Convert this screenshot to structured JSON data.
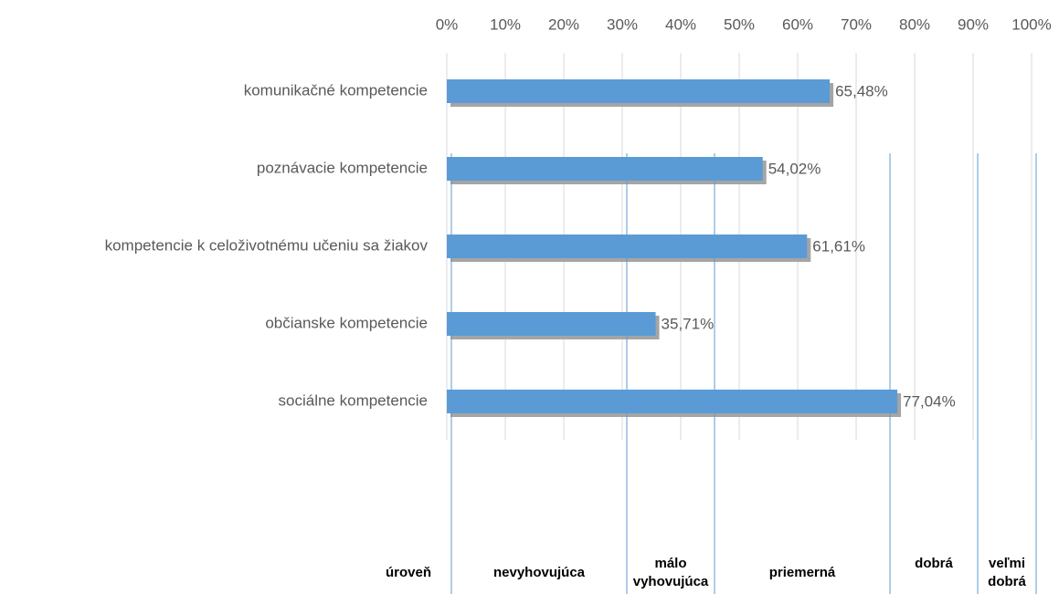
{
  "chart_data": {
    "type": "barh",
    "categories": [
      "komunikačné kompetencie",
      "poznávacie kompetencie",
      "kompetencie k celoživotnému učeniu sa žiakov",
      "občianske kompetencie",
      "sociálne kompetencie"
    ],
    "values": [
      65.48,
      54.02,
      61.61,
      35.71,
      77.04
    ],
    "value_labels": [
      "65,48%",
      "54,02%",
      "61,61%",
      "35,71%",
      "77,04%"
    ],
    "color": "#5b9bd5",
    "xlim": [
      0,
      100
    ],
    "xticks": [
      {
        "value": 0,
        "label": "0%"
      },
      {
        "value": 10,
        "label": "10%"
      },
      {
        "value": 20,
        "label": "20%"
      },
      {
        "value": 30,
        "label": "30%"
      },
      {
        "value": 40,
        "label": "40%"
      },
      {
        "value": 50,
        "label": "50%"
      },
      {
        "value": 60,
        "label": "60%"
      },
      {
        "value": 70,
        "label": "70%"
      },
      {
        "value": 80,
        "label": "80%"
      },
      {
        "value": 90,
        "label": "90%"
      },
      {
        "value": 100,
        "label": "100%"
      }
    ],
    "grid": true,
    "levels": {
      "label": "úroveň",
      "bounds": [
        0,
        30,
        45,
        75,
        90,
        100
      ],
      "names": [
        "nevyhovujúca",
        "málo vyhovujúca",
        "priemerná",
        "dobrá",
        "veľmi dobrá"
      ]
    }
  }
}
